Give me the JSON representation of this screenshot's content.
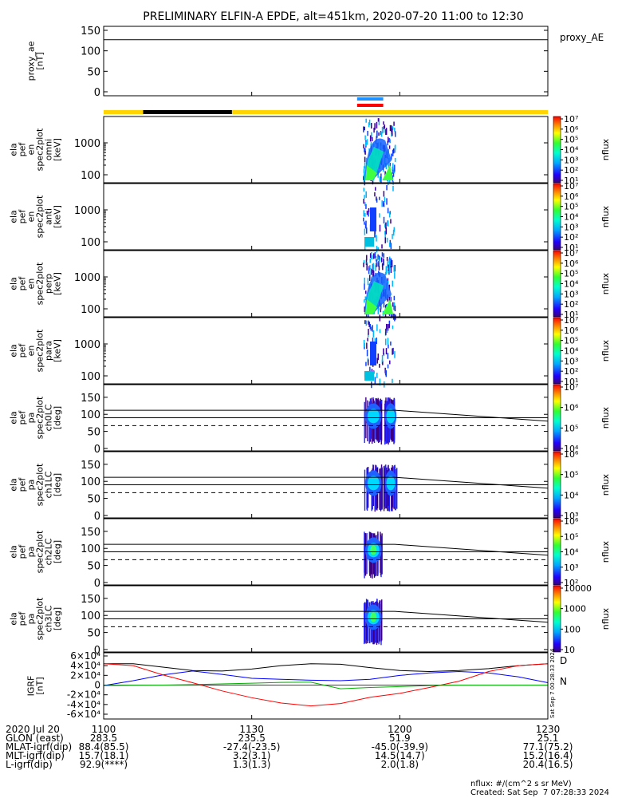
{
  "title": "PRELIMINARY ELFIN-A EPDE, alt=451km, 2020-07-20 11:00 to 12:30",
  "colors": {
    "line_black": "#000000",
    "field_blue": "#0000ff",
    "field_red": "#ff0000",
    "field_green": "#00b000",
    "bar_yellow": "#ffd400",
    "bar_black": "#000000",
    "bar_blue": "#1e90ff",
    "bar_red": "#ff0000"
  },
  "chart_data": [
    {
      "id": "proxy_ae",
      "type": "line",
      "ylabel_lines": [
        "proxy_ae",
        "[nT]"
      ],
      "legend": "proxy_AE",
      "ylim": [
        0,
        150
      ],
      "yticks": [
        0,
        50,
        100,
        150
      ],
      "series": [
        {
          "x": [
            "11:00",
            "12:30"
          ],
          "values": [
            127,
            127
          ]
        }
      ]
    },
    {
      "id": "orbit-bar",
      "type": "bar",
      "segments": [
        {
          "start": "11:00",
          "end": "11:08",
          "color": "yellow"
        },
        {
          "start": "11:08",
          "end": "11:26",
          "color": "black"
        },
        {
          "start": "11:26",
          "end": "12:30",
          "color": "yellow"
        }
      ],
      "markers": [
        {
          "start": "11:52",
          "end": "11:56",
          "color": "blue"
        },
        {
          "start": "11:52",
          "end": "11:56",
          "color": "red"
        }
      ]
    },
    {
      "id": "spec-omni",
      "type": "heatmap",
      "ylabel_lines": [
        "ela",
        "pef",
        "en",
        "spec2plot",
        "omni",
        "[keV]"
      ],
      "yscale": "log",
      "yticks": [
        "100",
        "1000"
      ],
      "colorbar": {
        "label": "nflux",
        "ticks": [
          "10¹",
          "10²",
          "10³",
          "10⁴",
          "10⁵",
          "10⁶",
          "10⁷"
        ]
      }
    },
    {
      "id": "spec-anti",
      "type": "heatmap",
      "ylabel_lines": [
        "ela",
        "pef",
        "en",
        "spec2plot",
        "anti",
        "[keV]"
      ],
      "yscale": "log",
      "yticks": [
        "100",
        "1000"
      ],
      "colorbar": {
        "label": "nflux",
        "ticks": [
          "10¹",
          "10²",
          "10³",
          "10⁴",
          "10⁵",
          "10⁶",
          "10⁷"
        ]
      }
    },
    {
      "id": "spec-perp",
      "type": "heatmap",
      "ylabel_lines": [
        "ela",
        "pef",
        "en",
        "spec2plot",
        "perp",
        "[keV]"
      ],
      "yscale": "log",
      "yticks": [
        "100",
        "1000"
      ],
      "colorbar": {
        "label": "nflux",
        "ticks": [
          "10¹",
          "10²",
          "10³",
          "10⁴",
          "10⁵",
          "10⁶",
          "10⁷"
        ]
      }
    },
    {
      "id": "spec-para",
      "type": "heatmap",
      "ylabel_lines": [
        "ela",
        "pef",
        "en",
        "spec2plot",
        "para",
        "[keV]"
      ],
      "yscale": "log",
      "yticks": [
        "100",
        "1000"
      ],
      "colorbar": {
        "label": "nflux",
        "ticks": [
          "10¹",
          "10²",
          "10³",
          "10⁴",
          "10⁵",
          "10⁶",
          "10⁷"
        ]
      }
    },
    {
      "id": "pa-ch0",
      "type": "heatmap",
      "ylabel_lines": [
        "ela",
        "pef",
        "pa",
        "spec2plot",
        "ch0LC",
        "[deg]"
      ],
      "ylim": [
        0,
        180
      ],
      "yticks": [
        0,
        50,
        100,
        150
      ],
      "colorbar": {
        "label": "nflux",
        "ticks": [
          "10⁴",
          "10⁵",
          "10⁶",
          "10⁷"
        ]
      },
      "guide_lines": [
        {
          "style": "solid",
          "values": [
            112,
            112,
            112,
            80
          ]
        },
        {
          "style": "solid",
          "values": [
            90,
            90,
            90,
            90
          ]
        },
        {
          "style": "dashed",
          "values": [
            67,
            67,
            67,
            67
          ]
        }
      ]
    },
    {
      "id": "pa-ch1",
      "type": "heatmap",
      "ylabel_lines": [
        "ela",
        "pef",
        "pa",
        "spec2plot",
        "ch1LC",
        "[deg]"
      ],
      "ylim": [
        0,
        180
      ],
      "yticks": [
        0,
        50,
        100,
        150
      ],
      "colorbar": {
        "label": "nflux",
        "ticks": [
          "10³",
          "10⁴",
          "10⁵",
          "10⁶"
        ]
      },
      "guide_lines": [
        {
          "style": "solid",
          "values": [
            112,
            112,
            112,
            80
          ]
        },
        {
          "style": "solid",
          "values": [
            90,
            90,
            90,
            90
          ]
        },
        {
          "style": "dashed",
          "values": [
            67,
            67,
            67,
            67
          ]
        }
      ]
    },
    {
      "id": "pa-ch2",
      "type": "heatmap",
      "ylabel_lines": [
        "ela",
        "pef",
        "pa",
        "spec2plot",
        "ch2LC",
        "[deg]"
      ],
      "ylim": [
        0,
        180
      ],
      "yticks": [
        0,
        50,
        100,
        150
      ],
      "colorbar": {
        "label": "nflux",
        "ticks": [
          "10²",
          "10³",
          "10⁴",
          "10⁵",
          "10⁶"
        ]
      },
      "guide_lines": [
        {
          "style": "solid",
          "values": [
            112,
            112,
            112,
            80
          ]
        },
        {
          "style": "solid",
          "values": [
            90,
            90,
            90,
            90
          ]
        },
        {
          "style": "dashed",
          "values": [
            67,
            67,
            67,
            67
          ]
        }
      ]
    },
    {
      "id": "pa-ch3",
      "type": "heatmap",
      "ylabel_lines": [
        "ela",
        "pef",
        "pa",
        "spec2plot",
        "ch3LC",
        "[deg]"
      ],
      "ylim": [
        0,
        180
      ],
      "yticks": [
        0,
        50,
        100,
        150
      ],
      "colorbar": {
        "label": "nflux",
        "ticks": [
          "10",
          "100",
          "1000",
          "10000"
        ]
      },
      "guide_lines": [
        {
          "style": "solid",
          "values": [
            112,
            112,
            112,
            80
          ]
        },
        {
          "style": "solid",
          "values": [
            90,
            90,
            90,
            90
          ]
        },
        {
          "style": "dashed",
          "values": [
            67,
            67,
            67,
            67
          ]
        }
      ]
    },
    {
      "id": "igrf",
      "type": "line",
      "ylabel_lines": [
        "IGRF",
        "[nT]"
      ],
      "ylim": [
        -60000,
        60000
      ],
      "yticks": [
        "-6×10⁴",
        "-4×10⁴",
        "-2×10⁴",
        "0",
        "2×10⁴",
        "4×10⁴",
        "6×10⁴"
      ],
      "x": [
        "11:00",
        "11:06",
        "11:12",
        "11:18",
        "11:24",
        "11:30",
        "11:36",
        "11:42",
        "11:48",
        "11:54",
        "12:00",
        "12:06",
        "12:12",
        "12:18",
        "12:24",
        "12:30"
      ],
      "legend": [
        "D",
        "N"
      ],
      "series": [
        {
          "color": "black",
          "values": [
            44000,
            44000,
            37000,
            30000,
            29000,
            33000,
            40000,
            44000,
            43000,
            36000,
            30000,
            28000,
            30000,
            34000,
            40000,
            44000
          ]
        },
        {
          "color": "blue",
          "values": [
            -1000,
            9000,
            21000,
            29000,
            22000,
            14000,
            12000,
            10000,
            9000,
            12000,
            20000,
            25000,
            28000,
            25000,
            17000,
            5000
          ]
        },
        {
          "color": "red",
          "values": [
            44000,
            40000,
            21000,
            5000,
            -12000,
            -26000,
            -37000,
            -43000,
            -38000,
            -25000,
            -17000,
            -5000,
            8000,
            28000,
            40000,
            44000
          ]
        },
        {
          "color": "green",
          "values": [
            -1000,
            -500,
            0,
            1000,
            2500,
            4000,
            5500,
            6000,
            -7500,
            -5000,
            -3000,
            -1000,
            0,
            0,
            0,
            0
          ]
        }
      ]
    }
  ],
  "xaxis": {
    "ticks": [
      "1100",
      "1130",
      "1200",
      "1230"
    ]
  },
  "side_stamp": "Sat Sep  7 00:28:33 2024",
  "ephemeris": [
    {
      "label": "2020 Jul 20",
      "values": [
        "1100",
        "1130",
        "1200",
        "1230"
      ]
    },
    {
      "label": "GLON (east)",
      "values": [
        "283.5",
        "235.5",
        "51.9",
        "25.1"
      ]
    },
    {
      "label": "MLAT-igrf(dip)",
      "values": [
        "88.4(85.5)",
        "-27.4(-23.5)",
        "-45.0(-39.9)",
        "77.1(75.2)"
      ]
    },
    {
      "label": "MLT-igrf(dip)",
      "values": [
        "15.7(18.1)",
        "3.2(3.1)",
        "14.5(14.7)",
        "15.2(16.4)"
      ]
    },
    {
      "label": "L-igrf(dip)",
      "values": [
        "92.9(****)",
        "1.3(1.3)",
        "2.0(1.8)",
        "20.4(16.5)"
      ]
    }
  ],
  "footer": {
    "units": "nflux: #/(cm^2 s sr MeV)",
    "created": "Created: Sat Sep  7 07:28:33 2024"
  }
}
